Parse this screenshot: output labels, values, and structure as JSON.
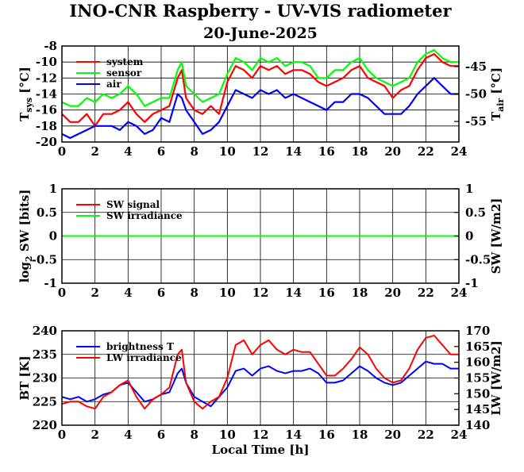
{
  "title": "INO-CNR Raspberry - UV-VIS radiometer",
  "subtitle": "20-June-2025",
  "xlabel": "Local Time [h]",
  "chart_data": [
    {
      "type": "line",
      "panel": "temperature",
      "ylabel": "T_sys [°C]",
      "y2label": "T_air [°C]",
      "xlim": [
        0,
        24
      ],
      "ylim": [
        -20,
        -8
      ],
      "y2lim": [
        -58.75,
        -41.25
      ],
      "xticks": [
        "0",
        "2",
        "4",
        "6",
        "8",
        "10",
        "12",
        "14",
        "16",
        "18",
        "20",
        "22",
        "24"
      ],
      "yticks": [
        "-8",
        "-10",
        "-12",
        "-14",
        "-16",
        "-18",
        "-20"
      ],
      "y2ticks": [
        "-45",
        "-50",
        "-55"
      ],
      "legend_position": "top-left",
      "series": [
        {
          "name": "system",
          "color": "#ff0000",
          "x": [
            0,
            0.5,
            1,
            1.5,
            2,
            2.5,
            3,
            3.5,
            4,
            4.5,
            5,
            5.5,
            6,
            6.5,
            7,
            7.25,
            7.5,
            8,
            8.5,
            9,
            9.5,
            10,
            10.5,
            11,
            11.5,
            12,
            12.5,
            13,
            13.5,
            14,
            14.5,
            15,
            15.5,
            16,
            16.5,
            17,
            17.5,
            18,
            18.5,
            19,
            19.5,
            20,
            20.5,
            21,
            21.5,
            22,
            22.5,
            23,
            23.5,
            24
          ],
          "y": [
            -16.5,
            -17.5,
            -17.5,
            -16.5,
            -18,
            -16.5,
            -16.5,
            -16,
            -15,
            -16.5,
            -17.5,
            -16.5,
            -16,
            -15.5,
            -12,
            -11,
            -14.5,
            -16,
            -16.5,
            -15.5,
            -16.5,
            -12.5,
            -10.5,
            -11,
            -12,
            -10.5,
            -11,
            -10.5,
            -11.5,
            -11,
            -11,
            -11.5,
            -12.5,
            -13,
            -12.5,
            -12,
            -11,
            -10.5,
            -12,
            -12.5,
            -13,
            -14.5,
            -13.5,
            -13,
            -11,
            -9.5,
            -9,
            -10,
            -10.5,
            -10.5
          ]
        },
        {
          "name": "sensor",
          "color": "#00ff00",
          "x": [
            0,
            0.5,
            1,
            1.5,
            2,
            2.5,
            3,
            3.5,
            4,
            4.5,
            5,
            5.5,
            6,
            6.5,
            7,
            7.25,
            7.5,
            8,
            8.5,
            9,
            9.5,
            10,
            10.5,
            11,
            11.5,
            12,
            12.5,
            13,
            13.5,
            14,
            14.5,
            15,
            15.5,
            16,
            16.5,
            17,
            17.5,
            18,
            18.5,
            19,
            19.5,
            20,
            20.5,
            21,
            21.5,
            22,
            22.5,
            23,
            23.5,
            24
          ],
          "y": [
            -15,
            -15.5,
            -15.5,
            -14.5,
            -15,
            -14,
            -14.5,
            -14,
            -13,
            -14,
            -15.5,
            -15,
            -14.5,
            -14.5,
            -11,
            -10,
            -13,
            -14,
            -15,
            -14.5,
            -14,
            -11.5,
            -9.5,
            -10,
            -11,
            -9.5,
            -10,
            -9.5,
            -10.5,
            -10,
            -10,
            -10.5,
            -12,
            -12,
            -11,
            -11,
            -10,
            -9.5,
            -11,
            -12,
            -12.5,
            -13,
            -12.5,
            -12,
            -10,
            -9,
            -8.5,
            -9.5,
            -10,
            -10
          ]
        },
        {
          "name": "air",
          "color": "#0000ff",
          "x": [
            0,
            0.5,
            1,
            1.5,
            2,
            2.5,
            3,
            3.5,
            4,
            4.5,
            5,
            5.5,
            6,
            6.5,
            7,
            7.25,
            7.5,
            8,
            8.5,
            9,
            9.5,
            10,
            10.5,
            11,
            11.5,
            12,
            12.5,
            13,
            13.5,
            14,
            14.5,
            15,
            15.5,
            16,
            16.5,
            17,
            17.5,
            18,
            18.5,
            19,
            19.5,
            20,
            20.5,
            21,
            21.5,
            22,
            22.5,
            23,
            23.5,
            24
          ],
          "y": [
            -19,
            -19.5,
            -19,
            -18.5,
            -18,
            -18,
            -18,
            -18.5,
            -17.5,
            -18,
            -19,
            -18.5,
            -17,
            -17.5,
            -14,
            -14.5,
            -16,
            -17.5,
            -19,
            -18.5,
            -17.5,
            -15.5,
            -13.5,
            -14,
            -14.5,
            -13.5,
            -14,
            -13.5,
            -14.5,
            -14,
            -14.5,
            -15,
            -15.5,
            -16,
            -15,
            -15,
            -14,
            -14,
            -14.5,
            -15.5,
            -16.5,
            -16.5,
            -16.5,
            -15.5,
            -14,
            -13,
            -12,
            -13,
            -14,
            -14
          ]
        }
      ]
    },
    {
      "type": "line",
      "panel": "shortwave",
      "ylabel": "log2 SW [bits]",
      "y2label": "SW [W/m2]",
      "xlim": [
        0,
        24
      ],
      "ylim": [
        -1,
        1
      ],
      "y2lim": [
        -1,
        1
      ],
      "xticks": [
        "0",
        "2",
        "4",
        "6",
        "8",
        "10",
        "12",
        "14",
        "16",
        "18",
        "20",
        "22",
        "24"
      ],
      "yticks": [
        "1",
        "0.5",
        "0",
        "-0.5",
        "-1"
      ],
      "y2ticks": [
        "1",
        "0.5",
        "0",
        "-0.5",
        "-1"
      ],
      "legend_position": "top-left",
      "series": [
        {
          "name": "SW signal",
          "color": "#ff0000",
          "x": [
            0,
            24
          ],
          "y": [
            0,
            0
          ]
        },
        {
          "name": "SW irradiance",
          "color": "#00ff00",
          "x": [
            0,
            24
          ],
          "y": [
            0,
            0
          ]
        }
      ]
    },
    {
      "type": "line",
      "panel": "longwave",
      "ylabel": "BT [K]",
      "y2label": "LW [W/m2]",
      "xlim": [
        0,
        24
      ],
      "ylim": [
        220,
        240
      ],
      "y2lim": [
        140,
        170
      ],
      "xticks": [
        "0",
        "2",
        "4",
        "6",
        "8",
        "10",
        "12",
        "14",
        "16",
        "18",
        "20",
        "22",
        "24"
      ],
      "yticks": [
        "240",
        "235",
        "230",
        "225",
        "220"
      ],
      "y2ticks": [
        "170",
        "165",
        "160",
        "155",
        "150",
        "145",
        "140"
      ],
      "legend_position": "top-left",
      "series": [
        {
          "name": "brightness T",
          "color": "#0000ff",
          "x": [
            0,
            0.5,
            1,
            1.5,
            2,
            2.5,
            3,
            3.5,
            4,
            4.5,
            5,
            5.5,
            6,
            6.5,
            7,
            7.25,
            7.5,
            8,
            8.5,
            9,
            9.5,
            10,
            10.5,
            11,
            11.5,
            12,
            12.5,
            13,
            13.5,
            14,
            14.5,
            15,
            15.5,
            16,
            16.5,
            17,
            17.5,
            18,
            18.5,
            19,
            19.5,
            20,
            20.5,
            21,
            21.5,
            22,
            22.5,
            23,
            23.5,
            24
          ],
          "y": [
            226,
            225.5,
            226,
            225,
            225.5,
            226.5,
            227,
            228.5,
            229,
            227,
            225,
            225.5,
            226.5,
            227,
            231,
            232,
            229,
            226,
            225,
            224,
            226,
            228,
            231.5,
            232,
            230.5,
            232,
            232.5,
            231.5,
            231,
            231.5,
            231.5,
            232,
            231,
            229,
            229,
            229.5,
            231,
            232.5,
            231.5,
            230,
            229,
            228.5,
            229,
            230.5,
            232,
            233.5,
            233,
            233,
            232,
            232
          ]
        },
        {
          "name": "LW irradiance",
          "color": "#ff0000",
          "x": [
            0,
            0.5,
            1,
            1.5,
            2,
            2.5,
            3,
            3.5,
            4,
            4.5,
            5,
            5.5,
            6,
            6.5,
            7,
            7.25,
            7.5,
            8,
            8.5,
            9,
            9.5,
            10,
            10.5,
            11,
            11.5,
            12,
            12.5,
            13,
            13.5,
            14,
            14.5,
            15,
            15.5,
            16,
            16.5,
            17,
            17.5,
            18,
            18.5,
            19,
            19.5,
            20,
            20.5,
            21,
            21.5,
            22,
            22.5,
            23,
            23.5,
            24
          ],
          "y": [
            224.5,
            225,
            225,
            224,
            223.5,
            226,
            227,
            228.5,
            229.5,
            226,
            223.5,
            225.5,
            226.5,
            228,
            235,
            236,
            229,
            225,
            223.5,
            225,
            226,
            230,
            237,
            238,
            235,
            237,
            238,
            236,
            235,
            236,
            235.5,
            235.5,
            233,
            230.5,
            230.5,
            232,
            234,
            236.5,
            235,
            232,
            230,
            229,
            229.5,
            232,
            236,
            238.5,
            239,
            237,
            235,
            235
          ]
        }
      ]
    }
  ]
}
